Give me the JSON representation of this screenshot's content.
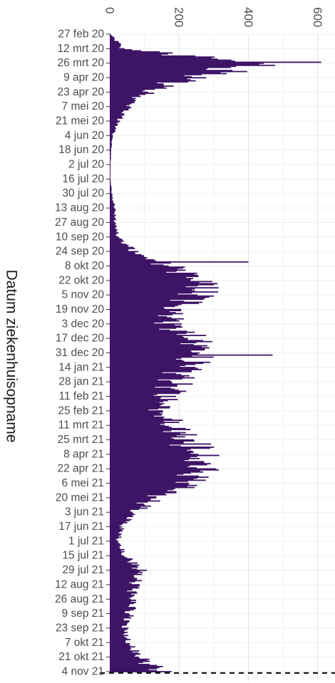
{
  "chart_data": {
    "type": "bar",
    "orientation": "horizontal",
    "ylabel": "Datum ziekenhuisopname",
    "xlabel": "",
    "title": "",
    "xlim": [
      0,
      650
    ],
    "x_ticks": [
      "0",
      "200",
      "400",
      "600"
    ],
    "x_tick_values": [
      0,
      200,
      400,
      600
    ],
    "date_labels": [
      "27 feb 20",
      "12 mrt 20",
      "26 mrt 20",
      "9 apr 20",
      "23 apr 20",
      "7 mei 20",
      "21 mei 20",
      "4 jun 20",
      "18 jun 20",
      "2 jul 20",
      "16 jul 20",
      "30 jul 20",
      "13 aug 20",
      "27 aug 20",
      "10 sep 20",
      "24 sep 20",
      "8 okt 20",
      "22 okt 20",
      "5 nov 20",
      "19 nov 20",
      "3 dec 20",
      "17 dec 20",
      "31 dec 20",
      "14 jan 21",
      "28 jan 21",
      "11 feb 21",
      "25 feb 21",
      "11 mrt 21",
      "25 mrt 21",
      "8 apr 21",
      "22 apr 21",
      "6 mei 21",
      "20 mei 21",
      "3 jun 21",
      "17 jun 21",
      "1 jul 21",
      "15 jul 21",
      "29 jul 21",
      "12 aug 21",
      "26 aug 21",
      "9 sep 21",
      "23 sep 21",
      "7 okt 21",
      "21 okt 21",
      "4 nov 21"
    ],
    "days_per_label": 14,
    "biweekly_values": [
      2,
      40,
      440,
      240,
      110,
      55,
      25,
      8,
      4,
      2,
      2,
      6,
      15,
      15,
      25,
      70,
      170,
      270,
      260,
      200,
      180,
      240,
      270,
      220,
      200,
      170,
      160,
      185,
      240,
      260,
      270,
      230,
      140,
      70,
      35,
      25,
      45,
      90,
      75,
      65,
      60,
      45,
      50,
      85,
      150
    ],
    "peaks": [
      [
        27,
        610
      ],
      [
        220,
        400
      ],
      [
        224,
        170
      ],
      [
        310,
        470
      ]
    ],
    "bar_color": "#3e1466",
    "dashed_reference_line": true
  }
}
